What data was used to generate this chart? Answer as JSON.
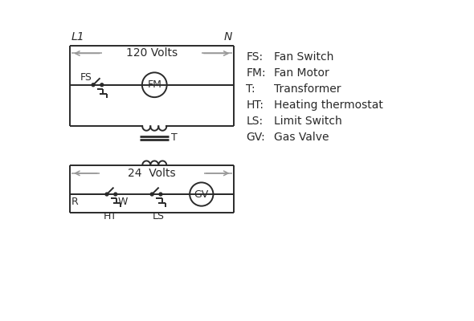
{
  "bg_color": "#ffffff",
  "line_color": "#2a2a2a",
  "gray_color": "#999999",
  "legend": [
    [
      "FS:",
      "Fan Switch"
    ],
    [
      "FM:",
      "Fan Motor"
    ],
    [
      "T:",
      "Transformer"
    ],
    [
      "HT:",
      "Heating thermostat"
    ],
    [
      "LS:",
      "Limit Switch"
    ],
    [
      "GV:",
      "Gas Valve"
    ]
  ],
  "volts_120": "120 Volts",
  "volts_24": "24  Volts",
  "L1": "L1",
  "N": "N"
}
